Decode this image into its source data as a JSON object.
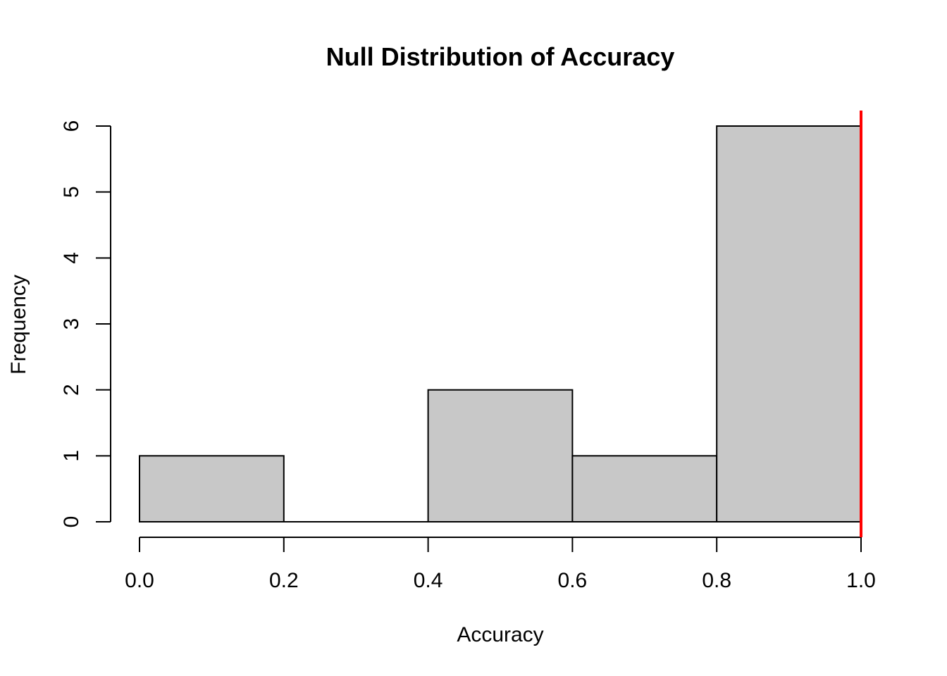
{
  "chart_data": {
    "type": "bar",
    "title": "Null Distribution of Accuracy",
    "xlabel": "Accuracy",
    "ylabel": "Frequency",
    "bins": [
      {
        "start": 0.0,
        "end": 0.2,
        "count": 1
      },
      {
        "start": 0.2,
        "end": 0.4,
        "count": 0
      },
      {
        "start": 0.4,
        "end": 0.6,
        "count": 2
      },
      {
        "start": 0.6,
        "end": 0.8,
        "count": 1
      },
      {
        "start": 0.8,
        "end": 1.0,
        "count": 6
      }
    ],
    "xlim": [
      0.0,
      1.0
    ],
    "ylim": [
      0,
      6
    ],
    "x_ticks": [
      "0.0",
      "0.2",
      "0.4",
      "0.6",
      "0.8",
      "1.0"
    ],
    "y_ticks": [
      "0",
      "1",
      "2",
      "3",
      "4",
      "5",
      "6"
    ],
    "reference_line": {
      "x": 1.0,
      "color": "#ff0000"
    },
    "bar_color": "#c8c8c8",
    "grid": false
  }
}
